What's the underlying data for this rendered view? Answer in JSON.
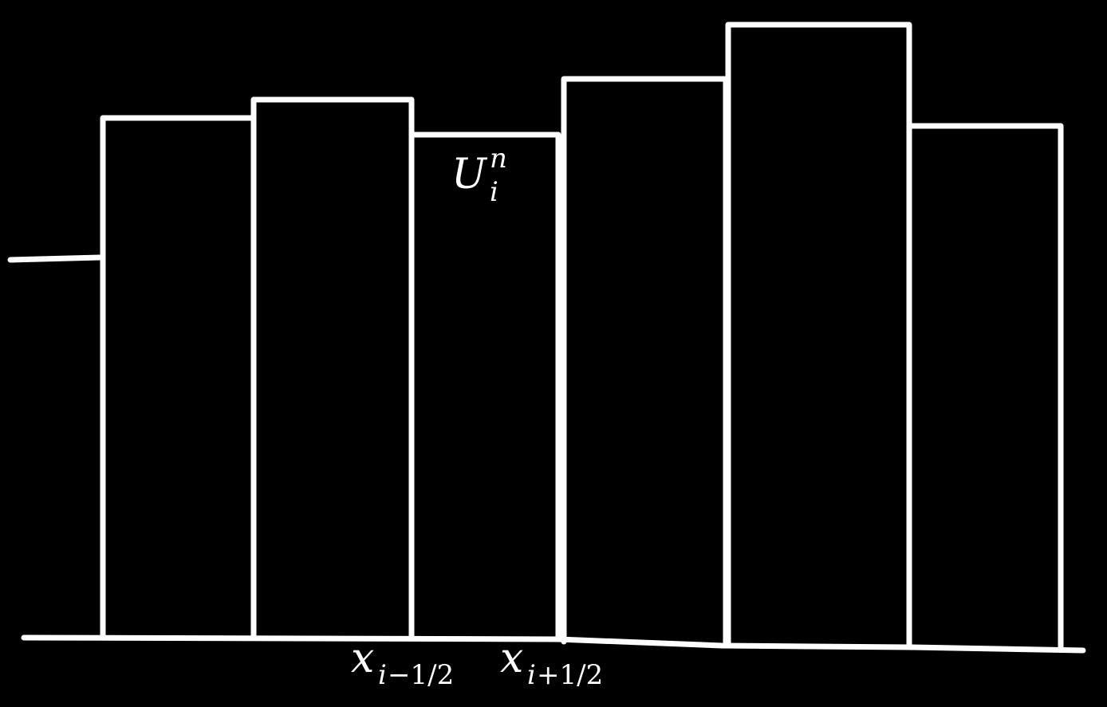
{
  "colors": {
    "background": "#000000",
    "ink": "#ffffff"
  },
  "labels": {
    "cell_value": {
      "base": "U",
      "superscript": "n",
      "subscript": "i"
    },
    "left_interface": {
      "base": "x",
      "subscript_var": "i",
      "subscript_rest": "−1/2"
    },
    "right_interface": {
      "base": "x",
      "subscript_var": "i",
      "subscript_rest": "+1/2"
    }
  }
}
